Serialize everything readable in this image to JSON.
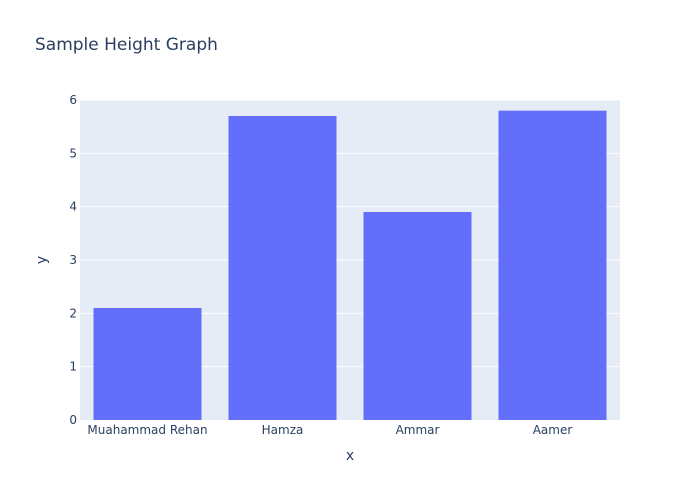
{
  "chart_data": {
    "type": "bar",
    "title": "Sample Height Graph",
    "xlabel": "x",
    "ylabel": "y",
    "categories": [
      "Muahammad Rehan",
      "Hamza",
      "Ammar",
      "Aamer"
    ],
    "values": [
      2.1,
      5.7,
      3.9,
      5.8
    ],
    "ylim": [
      0,
      6
    ],
    "yticks": [
      "0",
      "1",
      "2",
      "3",
      "4",
      "5",
      "6"
    ],
    "grid": true,
    "colors": {
      "bar": "#636efa",
      "plot_background": "#e5ecf6",
      "gridline": "#ffffff",
      "text": "#2a3f5f"
    }
  }
}
